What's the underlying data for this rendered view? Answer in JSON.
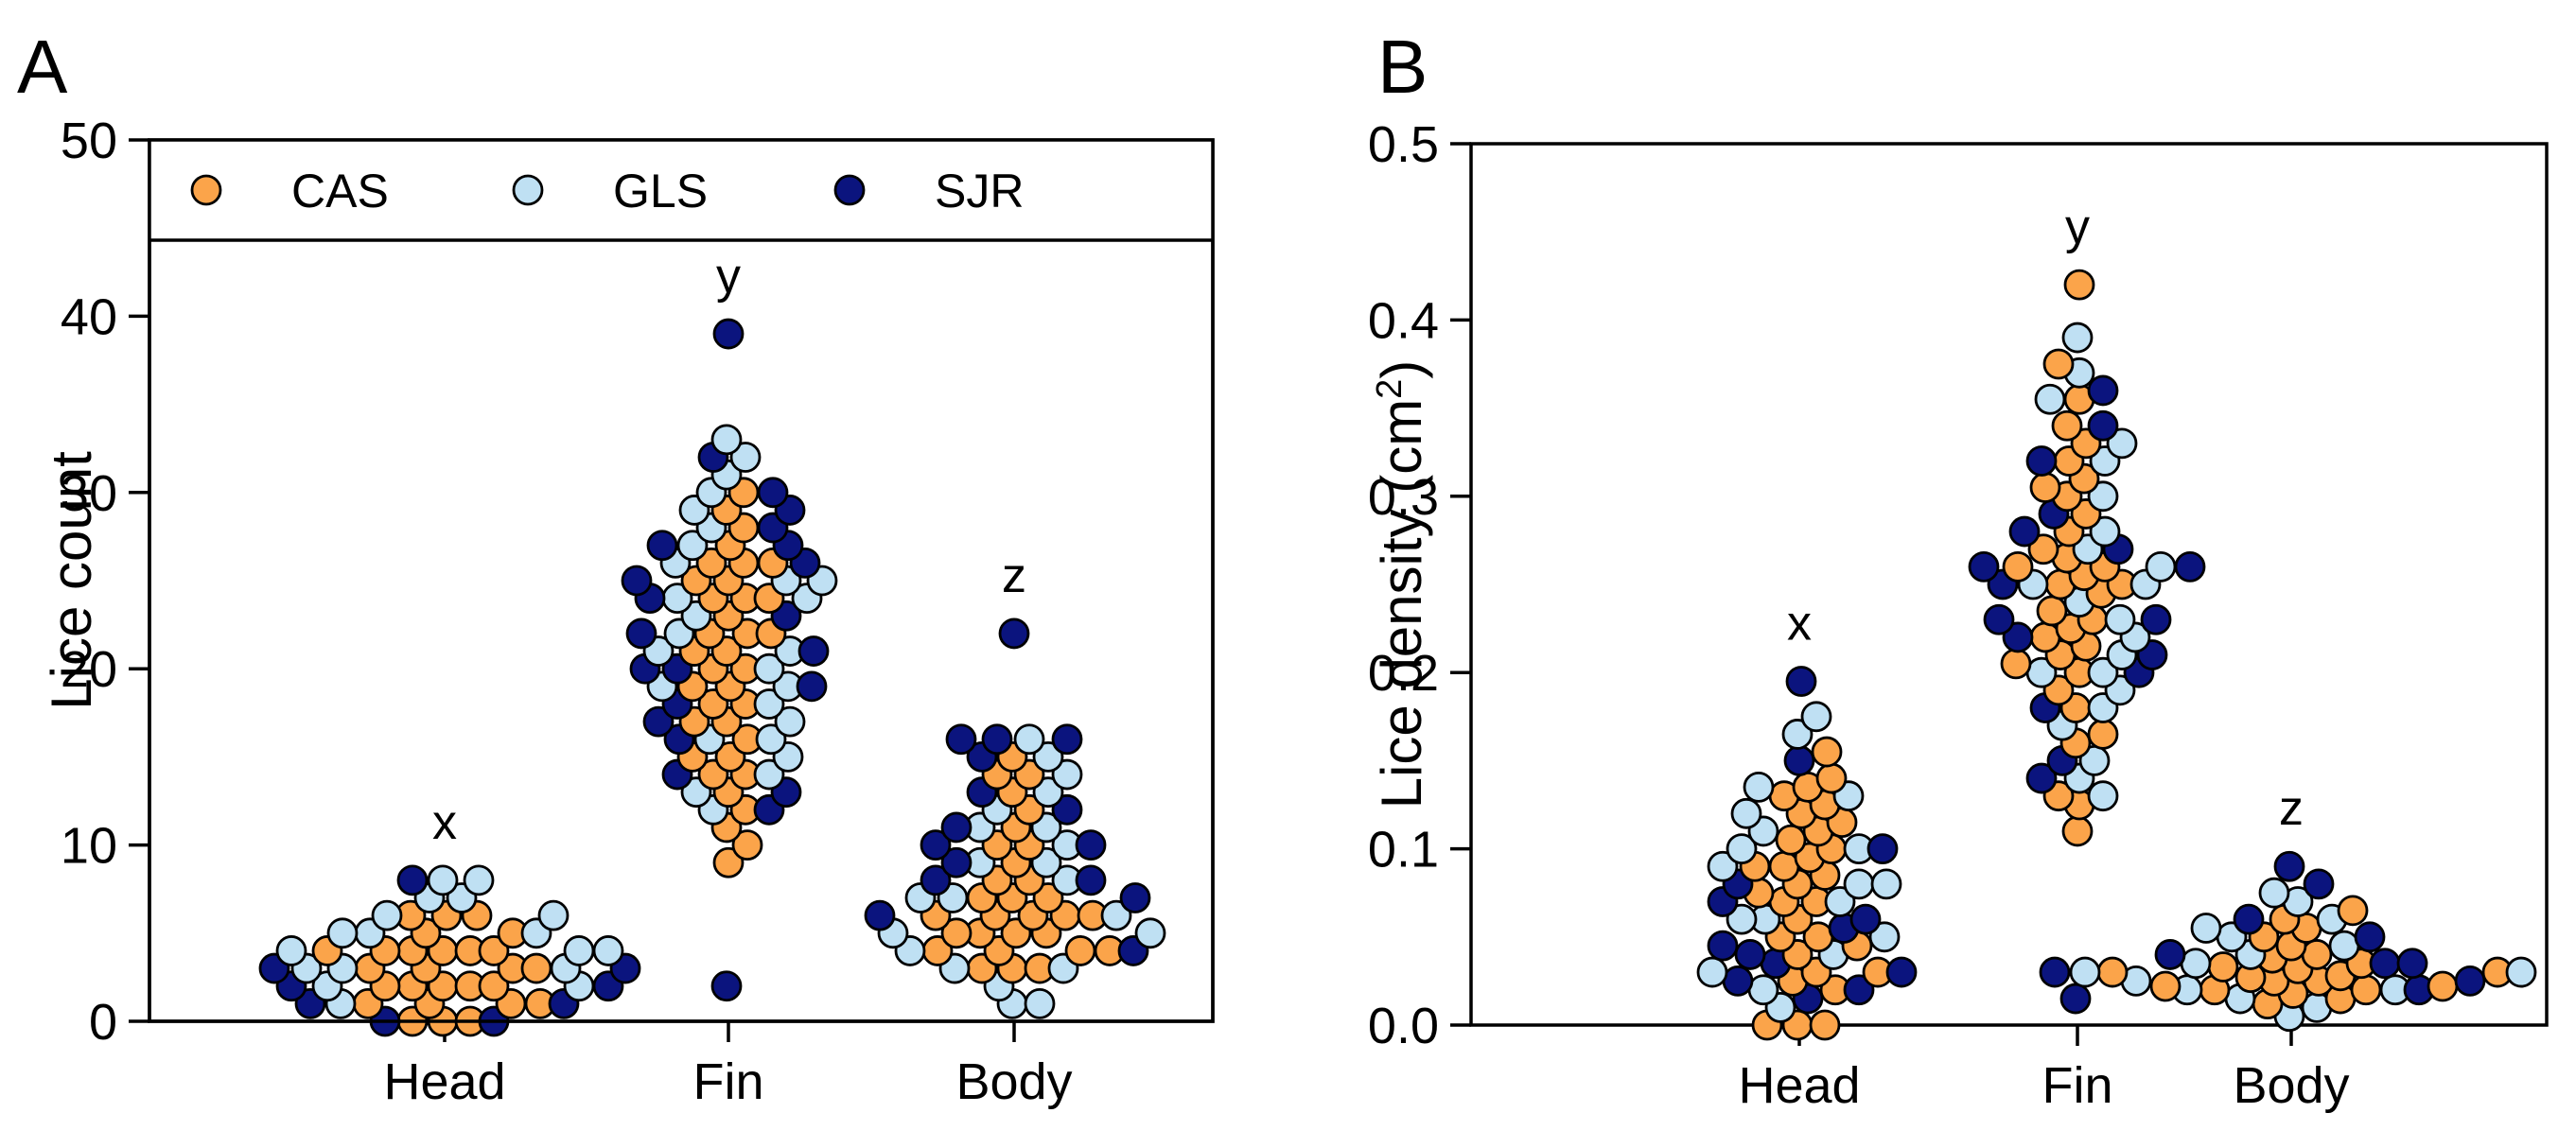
{
  "colors": {
    "CAS": "#FBA44A",
    "GLS": "#BFE0F3",
    "SJR": "#0B147E"
  },
  "chart_data": [
    {
      "panel": "A",
      "type": "scatter",
      "subtype": "beeswarm",
      "ylabel": "Lice count",
      "xlabel": "",
      "categories": [
        "Head",
        "Fin",
        "Body"
      ],
      "ylim": [
        0,
        50
      ],
      "yticks": [
        0,
        10,
        20,
        30,
        40,
        50
      ],
      "group_letters": [
        "x",
        "y",
        "z"
      ],
      "legend": {
        "placement": "top",
        "entries": [
          "CAS",
          "GLS",
          "SJR"
        ]
      },
      "series": [
        {
          "name": "CAS",
          "values": [
            [
              4,
              4,
              3,
              2,
              1,
              0,
              0,
              1,
              2,
              3,
              4,
              5,
              5,
              6,
              6,
              6,
              2,
              3,
              4,
              4,
              3,
              2,
              1,
              4,
              0,
              1,
              2
            ],
            [
              17,
              18,
              18,
              19,
              19,
              20,
              21,
              22,
              22,
              23,
              24,
              24,
              25,
              25,
              26,
              26,
              26,
              27,
              28,
              30,
              29,
              24,
              22,
              21,
              20,
              17,
              15,
              14,
              14,
              13,
              12,
              11,
              10,
              9,
              15,
              16
            ],
            [
              3,
              3,
              4,
              4,
              4,
              5,
              5,
              5,
              6,
              6,
              6,
              6,
              7,
              7,
              8,
              9,
              10,
              10,
              11,
              12,
              13,
              14,
              14,
              15,
              6,
              5,
              4,
              3,
              7,
              8
            ]
          ]
        },
        {
          "name": "GLS",
          "values": [
            [
              3,
              3,
              4,
              4,
              5,
              5,
              6,
              6,
              7,
              7,
              8,
              8,
              2,
              2,
              1,
              3,
              4,
              5
            ],
            [
              15,
              16,
              17,
              18,
              19,
              20,
              21,
              22,
              23,
              24,
              25,
              25,
              26,
              27,
              28,
              29,
              30,
              31,
              32,
              33,
              12,
              13,
              14,
              16,
              19,
              21,
              24
            ],
            [
              1,
              1,
              2,
              3,
              4,
              5,
              6,
              7,
              8,
              9,
              10,
              11,
              12,
              13,
              14,
              15,
              16,
              3,
              5,
              7,
              9,
              11
            ]
          ]
        },
        {
          "name": "SJR",
          "values": [
            [
              0,
              0,
              1,
              1,
              2,
              3,
              8,
              3,
              2
            ],
            [
              2,
              12,
              13,
              14,
              16,
              17,
              19,
              20,
              21,
              22,
              23,
              24,
              25,
              26,
              27,
              27,
              28,
              29,
              30,
              32,
              39,
              18,
              20
            ],
            [
              16,
              16,
              16,
              13,
              10,
              9,
              8,
              8,
              7,
              6,
              22,
              15,
              12,
              11,
              10,
              4
            ]
          ]
        }
      ]
    },
    {
      "panel": "B",
      "type": "scatter",
      "subtype": "beeswarm",
      "ylabel": "Lice density (cm",
      "ylabel_sup": "2",
      "ylabel_close": ")",
      "xlabel": "",
      "categories": [
        "Head",
        "Fin",
        "Body"
      ],
      "ylim": [
        0,
        0.5
      ],
      "yticks": [
        "0.0",
        "0.1",
        "0.2",
        "0.3",
        "0.4",
        "0.5"
      ],
      "group_letters": [
        "x",
        "y",
        "z"
      ],
      "series": [
        {
          "name": "CAS",
          "values": [
            [
              0.0,
              0.0,
              0.0,
              0.02,
              0.025,
              0.03,
              0.04,
              0.045,
              0.05,
              0.06,
              0.07,
              0.075,
              0.08,
              0.085,
              0.09,
              0.095,
              0.1,
              0.105,
              0.11,
              0.115,
              0.12,
              0.125,
              0.13,
              0.135,
              0.14,
              0.155,
              0.03,
              0.05,
              0.07,
              0.09
            ],
            [
              0.11,
              0.125,
              0.13,
              0.16,
              0.165,
              0.18,
              0.19,
              0.2,
              0.205,
              0.21,
              0.215,
              0.22,
              0.225,
              0.23,
              0.235,
              0.245,
              0.25,
              0.255,
              0.26,
              0.265,
              0.27,
              0.28,
              0.29,
              0.3,
              0.305,
              0.31,
              0.32,
              0.33,
              0.34,
              0.355,
              0.375,
              0.42,
              0.25,
              0.26
            ],
            [
              0.012,
              0.015,
              0.018,
              0.02,
              0.022,
              0.025,
              0.027,
              0.03,
              0.032,
              0.035,
              0.038,
              0.04,
              0.045,
              0.05,
              0.055,
              0.06,
              0.065,
              0.022,
              0.028,
              0.033,
              0.03,
              0.025,
              0.02
            ]
          ]
        },
        {
          "name": "GLS",
          "values": [
            [
              0.01,
              0.02,
              0.03,
              0.04,
              0.05,
              0.06,
              0.07,
              0.08,
              0.09,
              0.1,
              0.11,
              0.12,
              0.13,
              0.135,
              0.165,
              0.175,
              0.06,
              0.08,
              0.1
            ],
            [
              0.13,
              0.14,
              0.15,
              0.17,
              0.18,
              0.19,
              0.2,
              0.21,
              0.22,
              0.24,
              0.25,
              0.26,
              0.27,
              0.28,
              0.3,
              0.32,
              0.33,
              0.355,
              0.37,
              0.39,
              0.2,
              0.23,
              0.25
            ],
            [
              0.005,
              0.01,
              0.015,
              0.02,
              0.025,
              0.03,
              0.035,
              0.04,
              0.045,
              0.05,
              0.055,
              0.06,
              0.07,
              0.075,
              0.02,
              0.03
            ]
          ]
        },
        {
          "name": "SJR",
          "values": [
            [
              0.015,
              0.02,
              0.025,
              0.03,
              0.035,
              0.045,
              0.055,
              0.06,
              0.08,
              0.1,
              0.15,
              0.195,
              0.04,
              0.07
            ],
            [
              0.015,
              0.14,
              0.15,
              0.18,
              0.2,
              0.21,
              0.22,
              0.23,
              0.25,
              0.26,
              0.27,
              0.28,
              0.29,
              0.32,
              0.34,
              0.36,
              0.23,
              0.26
            ],
            [
              0.02,
              0.025,
              0.03,
              0.035,
              0.04,
              0.05,
              0.06,
              0.08,
              0.09,
              0.035
            ]
          ]
        }
      ]
    }
  ]
}
